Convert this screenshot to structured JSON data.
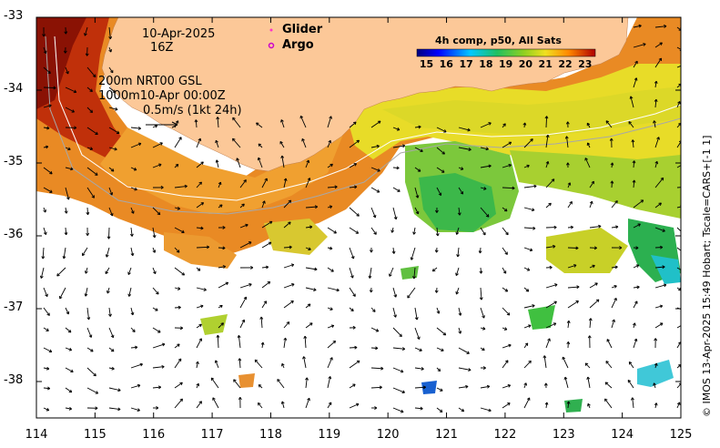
{
  "map": {
    "date_label": "10-Apr-2025",
    "time_label": "16Z",
    "legend_glider": "Glider",
    "legend_argo": "Argo",
    "isobath_line1": "200m  NRT00 GSL",
    "isobath_line2": "1000m10-Apr 00:00Z",
    "vector_scale": "0.5m/s (1kt 24h)",
    "colorbar_title": "4h comp, p50, All Sats",
    "colorbar_ticks": [
      "15",
      "16",
      "17",
      "18",
      "19",
      "20",
      "21",
      "22",
      "23"
    ],
    "credit": "© IMOS 13-Apr-2025 15:49 Hobart; Tscale=CARS+[-1 1]",
    "colors": {
      "land": "#fcc898",
      "glider": "#ff33cc",
      "argo": "#cc00cc"
    }
  },
  "chart_data": {
    "type": "heatmap",
    "title": "4h comp, p50, All Sats",
    "xlim": [
      114,
      125
    ],
    "ylim": [
      -38.5,
      -33
    ],
    "x_ticks": [
      "114",
      "115",
      "116",
      "117",
      "118",
      "119",
      "120",
      "121",
      "122",
      "123",
      "124",
      "125"
    ],
    "y_ticks": [
      "-33",
      "-34",
      "-35",
      "-36",
      "-37",
      "-38"
    ],
    "colorbar": {
      "min": 14.5,
      "max": 23.5,
      "ticks": [
        15,
        16,
        17,
        18,
        19,
        20,
        21,
        22,
        23
      ]
    }
  }
}
